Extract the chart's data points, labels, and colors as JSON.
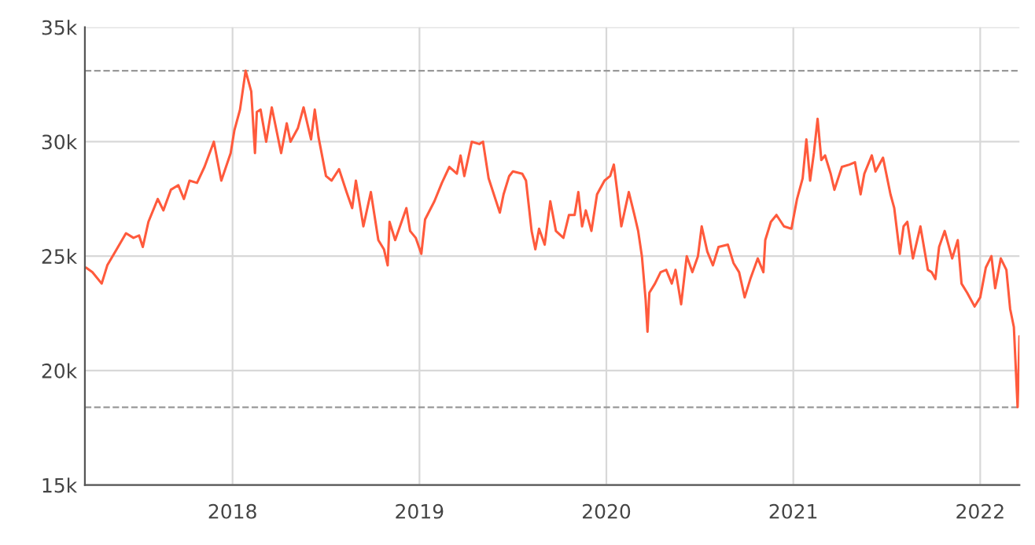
{
  "chart_data": {
    "type": "line",
    "x": [
      2017.216,
      2017.25,
      2017.3,
      2017.33,
      2017.38,
      2017.43,
      2017.47,
      2017.5,
      2017.52,
      2017.55,
      2017.6,
      2017.63,
      2017.67,
      2017.71,
      2017.74,
      2017.77,
      2017.81,
      2017.85,
      2017.9,
      2017.94,
      2017.99,
      2018.01,
      2018.04,
      2018.07,
      2018.1,
      2018.12,
      2018.13,
      2018.15,
      2018.18,
      2018.21,
      2018.23,
      2018.26,
      2018.29,
      2018.31,
      2018.35,
      2018.38,
      2018.42,
      2018.44,
      2018.46,
      2018.5,
      2018.53,
      2018.57,
      2018.61,
      2018.64,
      2018.66,
      2018.7,
      2018.74,
      2018.78,
      2018.81,
      2018.83,
      2018.84,
      2018.87,
      2018.93,
      2018.95,
      2018.98,
      2019.01,
      2019.03,
      2019.08,
      2019.12,
      2019.16,
      2019.2,
      2019.22,
      2019.24,
      2019.28,
      2019.32,
      2019.34,
      2019.37,
      2019.43,
      2019.45,
      2019.48,
      2019.5,
      2019.55,
      2019.57,
      2019.6,
      2019.62,
      2019.64,
      2019.67,
      2019.7,
      2019.73,
      2019.77,
      2019.8,
      2019.83,
      2019.85,
      2019.87,
      2019.89,
      2019.92,
      2019.95,
      2019.99,
      2020.02,
      2020.04,
      2020.06,
      2020.08,
      2020.12,
      2020.15,
      2020.17,
      2020.19,
      2020.21,
      2020.22,
      2020.23,
      2020.26,
      2020.29,
      2020.32,
      2020.35,
      2020.37,
      2020.4,
      2020.43,
      2020.46,
      2020.49,
      2020.51,
      2020.54,
      2020.57,
      2020.6,
      2020.65,
      2020.68,
      2020.71,
      2020.74,
      2020.77,
      2020.81,
      2020.84,
      2020.85,
      2020.88,
      2020.91,
      2020.95,
      2020.99,
      2021.02,
      2021.05,
      2021.07,
      2021.09,
      2021.11,
      2021.13,
      2021.15,
      2021.17,
      2021.2,
      2021.22,
      2021.26,
      2021.3,
      2021.33,
      2021.36,
      2021.38,
      2021.42,
      2021.44,
      2021.48,
      2021.52,
      2021.54,
      2021.57,
      2021.59,
      2021.61,
      2021.64,
      2021.68,
      2021.72,
      2021.74,
      2021.76,
      2021.78,
      2021.81,
      2021.85,
      2021.88,
      2021.9,
      2021.93,
      2021.97,
      2022.0,
      2022.03,
      2022.06,
      2022.08,
      2022.11,
      2022.14,
      2022.16,
      2022.18,
      2022.2,
      2022.21
    ],
    "series": [
      {
        "color": "#ff5a3c",
        "values": [
          24500,
          24300,
          23800,
          24600,
          25300,
          26000,
          25800,
          25900,
          25400,
          26500,
          27500,
          27000,
          27900,
          28100,
          27500,
          28300,
          28200,
          28900,
          30000,
          28300,
          29500,
          30500,
          31400,
          33100,
          32200,
          29500,
          31300,
          31400,
          30000,
          31500,
          30700,
          29500,
          30800,
          30000,
          30600,
          31500,
          30100,
          31400,
          30200,
          28500,
          28300,
          28800,
          27800,
          27100,
          28300,
          26300,
          27800,
          25700,
          25300,
          24600,
          26500,
          25700,
          27100,
          26100,
          25800,
          25100,
          26600,
          27400,
          28200,
          28900,
          28600,
          29400,
          28500,
          30000,
          29900,
          30000,
          28400,
          26900,
          27700,
          28500,
          28700,
          28600,
          28300,
          26100,
          25300,
          26200,
          25500,
          27400,
          26100,
          25800,
          26800,
          26800,
          27800,
          26300,
          27000,
          26100,
          27700,
          28300,
          28500,
          29000,
          27700,
          26300,
          27800,
          26800,
          26100,
          25000,
          23100,
          21700,
          23400,
          23800,
          24300,
          24400,
          23800,
          24400,
          22900,
          25000,
          24300,
          25000,
          26300,
          25200,
          24600,
          25400,
          25500,
          24700,
          24300,
          23200,
          24000,
          24900,
          24300,
          25700,
          26500,
          26800,
          26300,
          26200,
          27500,
          28400,
          30100,
          28300,
          29500,
          31000,
          29200,
          29400,
          28600,
          27900,
          28900,
          29000,
          29100,
          27700,
          28600,
          29400,
          28700,
          29300,
          27700,
          27100,
          25100,
          26300,
          26500,
          24900,
          26300,
          24400,
          24300,
          24000,
          25400,
          26100,
          24900,
          25700,
          23800,
          23400,
          22800,
          23200,
          24500,
          25000,
          23600,
          24900,
          24400,
          22700,
          21900,
          18400,
          21500
        ]
      }
    ],
    "xlim": [
      2017.21,
      2022.21
    ],
    "xticks": [
      2018,
      2019,
      2020,
      2021,
      2022
    ],
    "ylim": [
      15000,
      35000
    ],
    "yticks": [
      {
        "value": 15000,
        "label": "15k"
      },
      {
        "value": 20000,
        "label": "20k"
      },
      {
        "value": 25000,
        "label": "25k"
      },
      {
        "value": 30000,
        "label": "30k"
      },
      {
        "value": 35000,
        "label": "35k"
      }
    ],
    "ref_lines": [
      {
        "axis": "y",
        "value": 33100,
        "color": "#999999",
        "line_style": "dashed"
      },
      {
        "axis": "y",
        "value": 18400,
        "color": "#999999",
        "line_style": "dashed"
      }
    ],
    "grid": true,
    "line_style": "solid"
  }
}
